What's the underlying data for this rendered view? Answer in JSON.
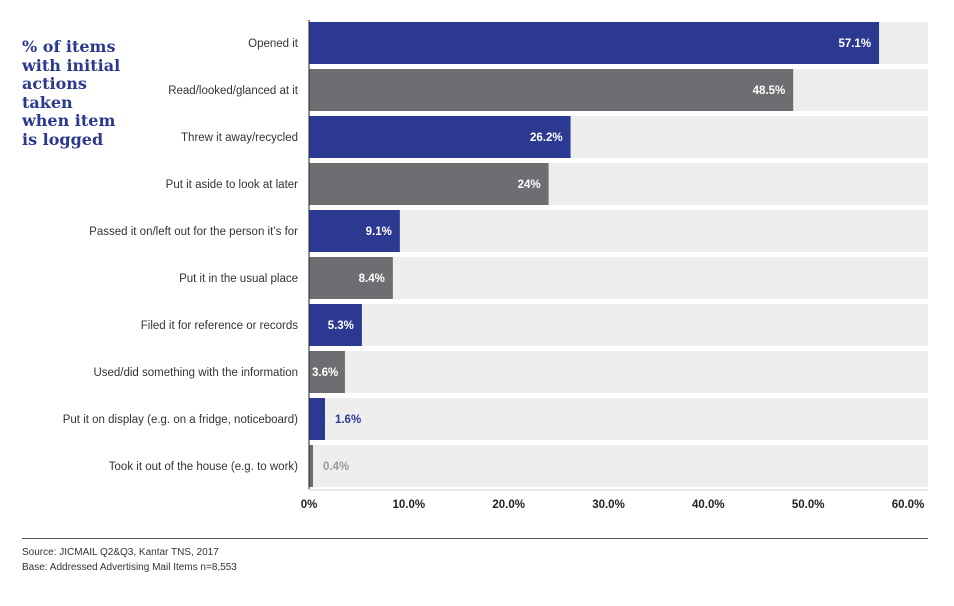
{
  "chart_data": {
    "type": "bar",
    "orientation": "horizontal",
    "title_lines": [
      "% of items",
      "with initial",
      "actions",
      "taken",
      "when item",
      "is logged"
    ],
    "categories": [
      "Opened it",
      "Read/looked/glanced at it",
      "Threw it away/recycled",
      "Put it aside to look at later",
      "Passed it on/left out for the person it’s for",
      "Put it in the usual place",
      "Filed it for reference or records",
      "Used/did something with the information",
      "Put it on display (e.g. on a fridge, noticeboard)",
      "Took it out of the house (e.g. to work)"
    ],
    "values": [
      57.1,
      48.5,
      26.2,
      24,
      9.1,
      8.4,
      5.3,
      3.6,
      1.6,
      0.4
    ],
    "data_labels": [
      "57.1%",
      "48.5%",
      "26.2%",
      "24%",
      "9.1%",
      "8.4%",
      "5.3%",
      "3.6%",
      "1.6%",
      "0.4%"
    ],
    "xlim": [
      0,
      60
    ],
    "xticks": [
      0,
      10,
      20,
      30,
      40,
      50,
      60
    ],
    "xtick_labels": [
      "0%",
      "10.0%",
      "20.0%",
      "30.0%",
      "40.0%",
      "50.0%",
      "60.0%"
    ],
    "grid": false,
    "legend": "none"
  },
  "colors": {
    "blue": "#2b3990",
    "grey": "#6d6e71",
    "track": "#eeeeef",
    "label_dark": "#333333",
    "label_light": "#999999"
  },
  "footer": {
    "source": "Source: JICMAIL Q2&Q3, Kantar TNS, 2017",
    "base": "Base: Addressed Advertising Mail Items n=8,553"
  }
}
